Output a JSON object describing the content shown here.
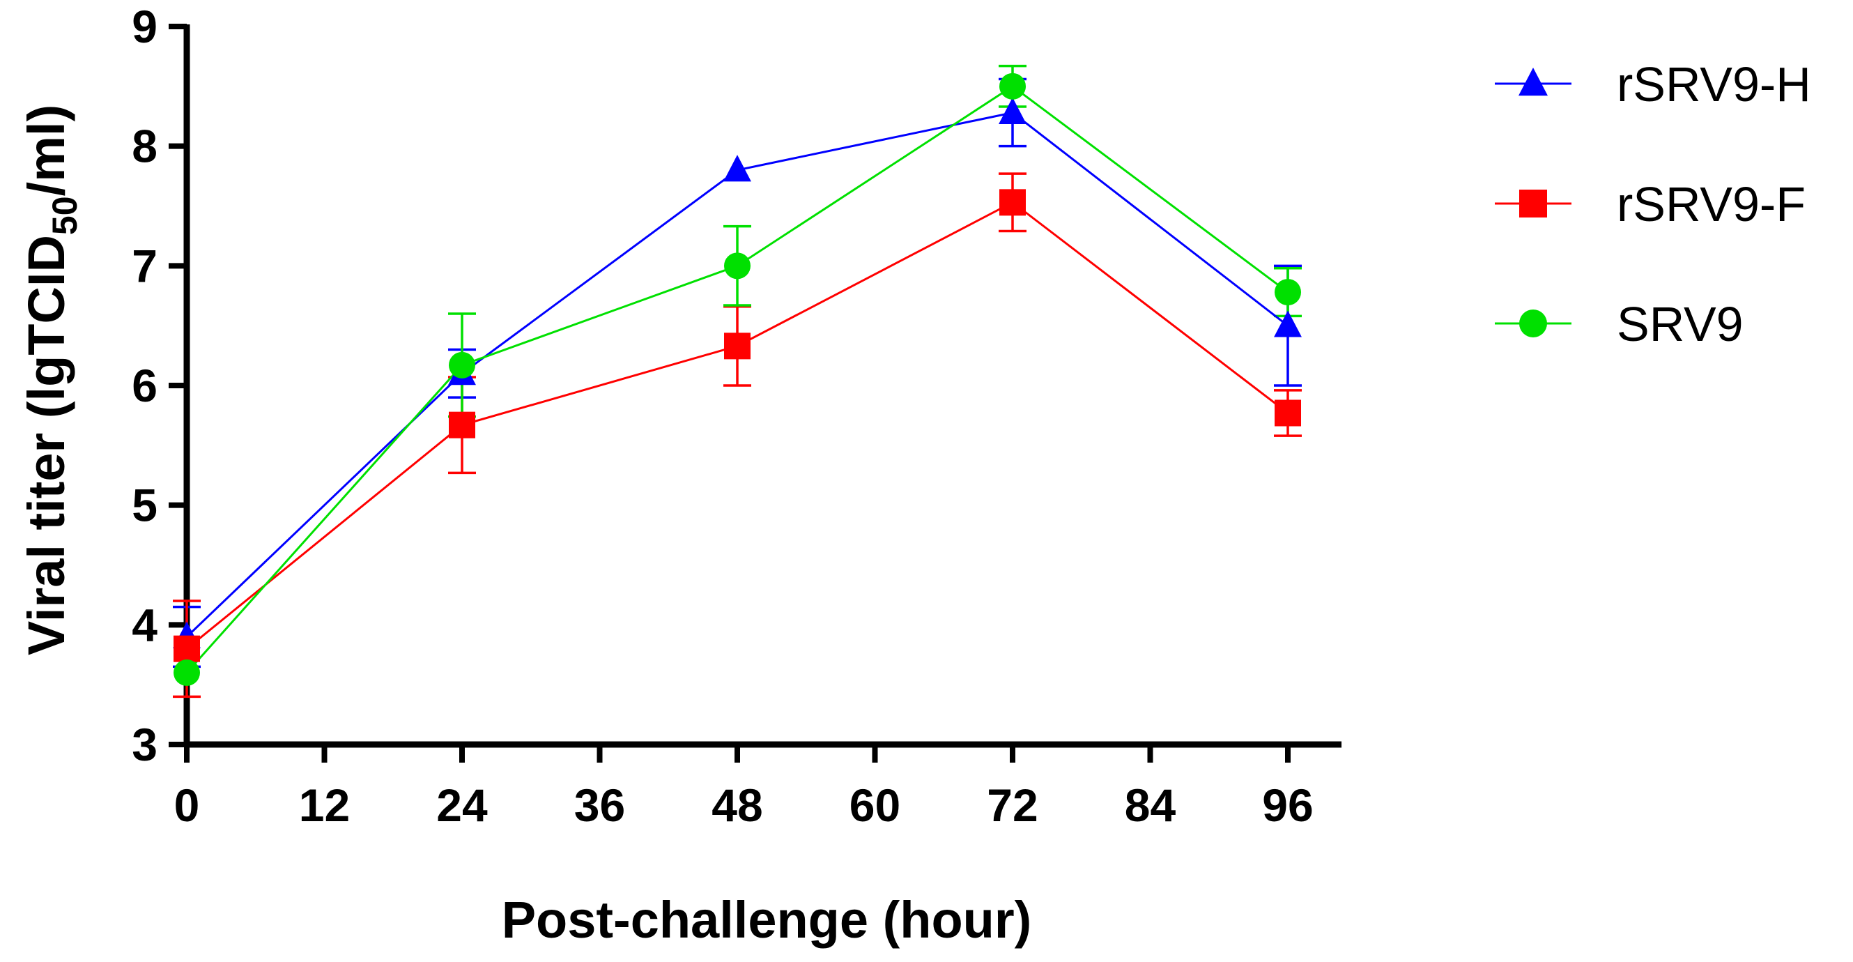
{
  "chart_data": {
    "type": "line",
    "title": "",
    "xlabel": "Post-challenge (hour)",
    "ylabel_main": "Viral titer (lgTCID",
    "ylabel_sub": "50",
    "ylabel_end": "/ml)",
    "xlim": [
      0,
      96
    ],
    "ylim": [
      3,
      9
    ],
    "x_ticks": [
      0,
      12,
      24,
      36,
      48,
      60,
      72,
      84,
      96
    ],
    "y_ticks": [
      3,
      4,
      5,
      6,
      7,
      8,
      9
    ],
    "grid": false,
    "legend_position": "top-right",
    "series": [
      {
        "name": "rSRV9-H",
        "color": "#0000ff",
        "marker": "triangle",
        "x": [
          0,
          24,
          48,
          72,
          96
        ],
        "values": [
          3.9,
          6.1,
          7.8,
          8.28,
          6.5
        ],
        "error": [
          0.25,
          0.2,
          0.0,
          0.28,
          0.5
        ]
      },
      {
        "name": "rSRV9-F",
        "color": "#ff0000",
        "marker": "square",
        "x": [
          0,
          24,
          48,
          72,
          96
        ],
        "values": [
          3.8,
          5.67,
          6.33,
          7.53,
          5.77
        ],
        "error": [
          0.4,
          0.4,
          0.33,
          0.24,
          0.19
        ]
      },
      {
        "name": "SRV9",
        "color": "#00e000",
        "marker": "circle",
        "x": [
          0,
          24,
          48,
          72,
          96
        ],
        "values": [
          3.6,
          6.17,
          7.0,
          8.5,
          6.78
        ],
        "error": [
          0.0,
          0.43,
          0.33,
          0.17,
          0.2
        ]
      }
    ]
  }
}
